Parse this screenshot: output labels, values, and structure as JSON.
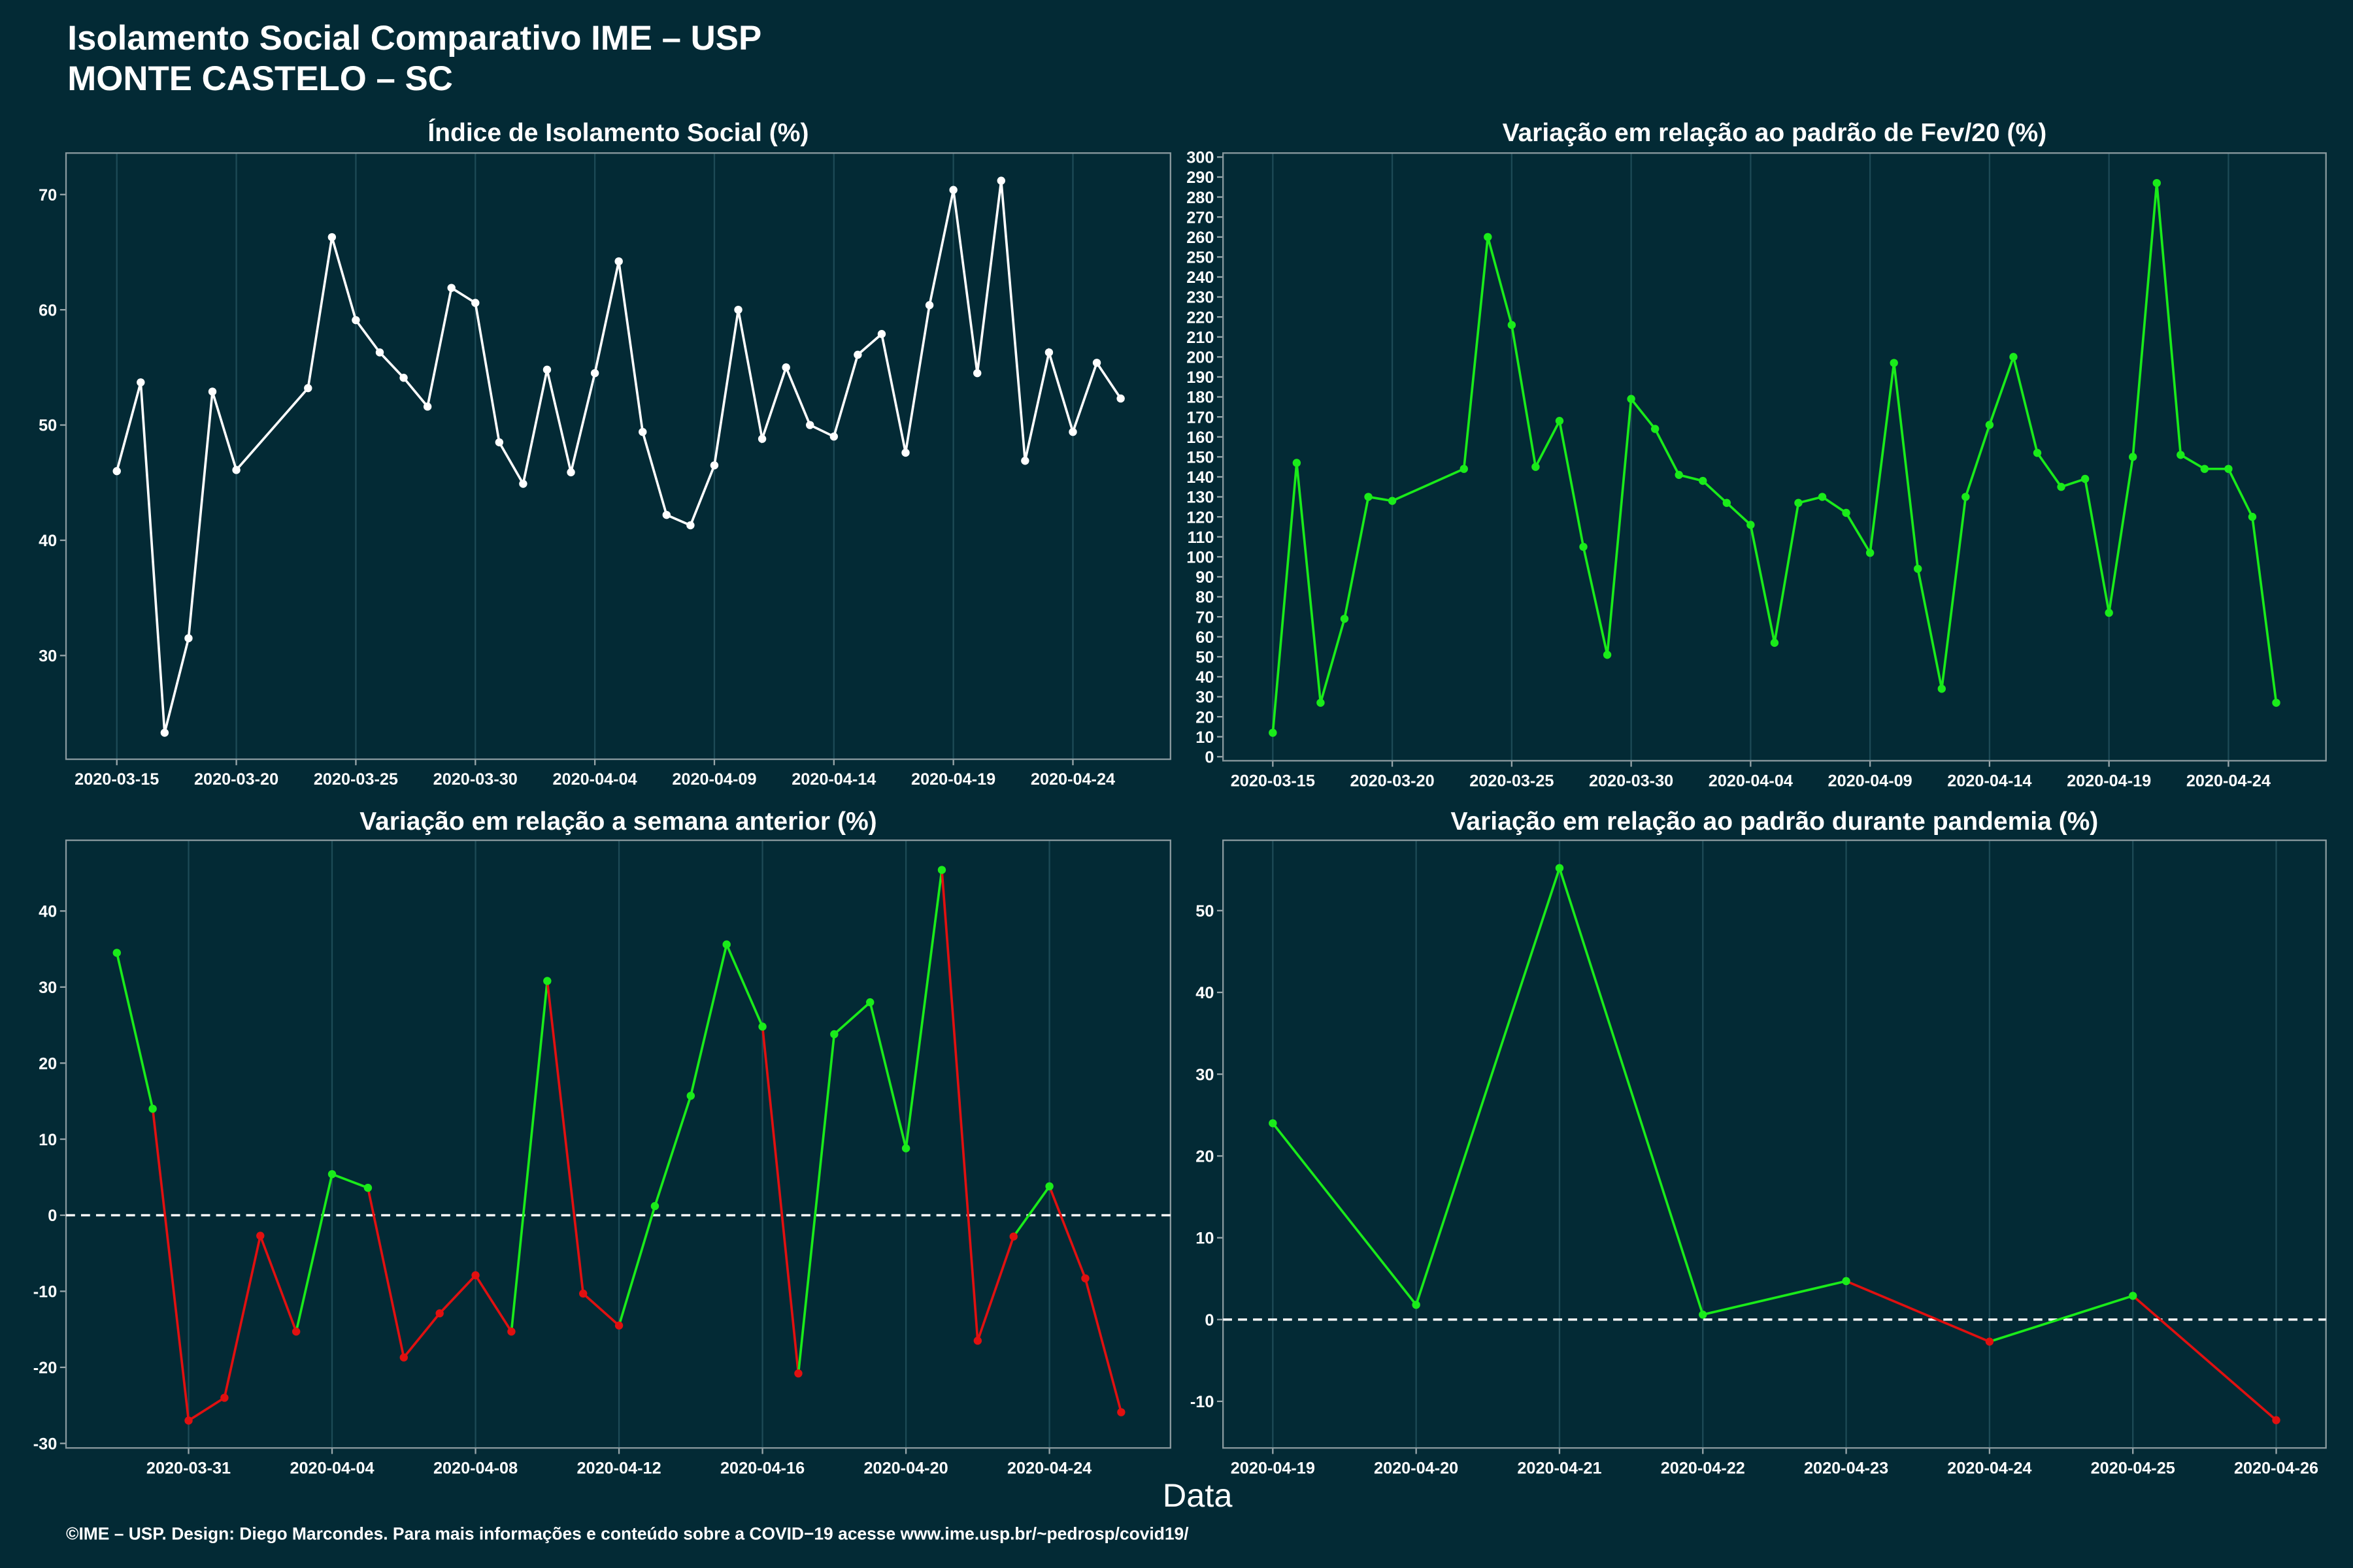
{
  "header": {
    "title": "Isolamento Social Comparativo IME – USP",
    "subtitle": "MONTE CASTELO – SC"
  },
  "x_label": "Data",
  "footer": "©IME – USP. Design: Diego Marcondes. Para mais informações e conteúdo sobre a COVID−19 acesse www.ime.usp.br/~pedrosp/covid19/",
  "chart_data": [
    {
      "type": "line",
      "title": "Índice de Isolamento Social (%)",
      "color": "#ffffff",
      "grid": true,
      "x": [
        "2020-03-15",
        "2020-03-16",
        "2020-03-17",
        "2020-03-18",
        "2020-03-19",
        "2020-03-20",
        "2020-03-23",
        "2020-03-24",
        "2020-03-25",
        "2020-03-26",
        "2020-03-27",
        "2020-03-28",
        "2020-03-29",
        "2020-03-30",
        "2020-03-31",
        "2020-04-01",
        "2020-04-02",
        "2020-04-03",
        "2020-04-04",
        "2020-04-05",
        "2020-04-06",
        "2020-04-07",
        "2020-04-08",
        "2020-04-09",
        "2020-04-10",
        "2020-04-11",
        "2020-04-12",
        "2020-04-13",
        "2020-04-14",
        "2020-04-15",
        "2020-04-16",
        "2020-04-17",
        "2020-04-18",
        "2020-04-19",
        "2020-04-20",
        "2020-04-21",
        "2020-04-22",
        "2020-04-23",
        "2020-04-24",
        "2020-04-25",
        "2020-04-26"
      ],
      "values": [
        46.0,
        53.7,
        23.3,
        31.5,
        52.9,
        46.1,
        53.2,
        66.3,
        59.1,
        56.3,
        54.1,
        51.6,
        61.9,
        60.6,
        48.5,
        44.9,
        54.8,
        45.9,
        54.5,
        64.2,
        49.4,
        42.2,
        41.3,
        46.5,
        60.0,
        48.8,
        55.0,
        50.0,
        49.0,
        56.1,
        57.9,
        47.6,
        60.4,
        70.4,
        54.5,
        71.2,
        46.9,
        56.3,
        49.4,
        55.4,
        52.3
      ],
      "xlim": [
        "2020-03-12T21:00",
        "2020-04-28T02:00"
      ],
      "xticks": [
        "2020-03-15",
        "2020-03-20",
        "2020-03-25",
        "2020-03-30",
        "2020-04-04",
        "2020-04-09",
        "2020-04-14",
        "2020-04-19",
        "2020-04-24"
      ],
      "ylim": [
        21,
        73.6
      ],
      "yticks": [
        30,
        40,
        50,
        60,
        70
      ]
    },
    {
      "type": "line",
      "title": "Variação em relação ao padrão de Fev/20 (%)",
      "color": "#1aeb1a",
      "grid": true,
      "x": [
        "2020-03-15",
        "2020-03-16",
        "2020-03-17",
        "2020-03-18",
        "2020-03-19",
        "2020-03-20",
        "2020-03-23",
        "2020-03-24",
        "2020-03-25",
        "2020-03-26",
        "2020-03-27",
        "2020-03-28",
        "2020-03-29",
        "2020-03-30",
        "2020-03-31",
        "2020-04-01",
        "2020-04-02",
        "2020-04-03",
        "2020-04-04",
        "2020-04-05",
        "2020-04-06",
        "2020-04-07",
        "2020-04-08",
        "2020-04-09",
        "2020-04-10",
        "2020-04-11",
        "2020-04-12",
        "2020-04-13",
        "2020-04-14",
        "2020-04-15",
        "2020-04-16",
        "2020-04-17",
        "2020-04-18",
        "2020-04-19",
        "2020-04-20",
        "2020-04-21",
        "2020-04-22",
        "2020-04-23",
        "2020-04-24",
        "2020-04-25",
        "2020-04-26"
      ],
      "values": [
        12,
        147,
        27,
        69,
        130,
        128,
        144,
        260,
        216,
        145,
        168,
        105,
        51,
        179,
        164,
        141,
        138,
        127,
        116,
        57,
        127,
        130,
        122,
        102,
        197,
        94,
        34,
        130,
        166,
        200,
        152,
        135,
        139,
        72,
        150,
        287,
        151,
        144,
        144,
        120,
        27
      ],
      "xlim": [
        "2020-03-12T22:00",
        "2020-04-28T02:00"
      ],
      "xticks": [
        "2020-03-15",
        "2020-03-20",
        "2020-03-25",
        "2020-03-30",
        "2020-04-04",
        "2020-04-09",
        "2020-04-14",
        "2020-04-19",
        "2020-04-24"
      ],
      "ylim": [
        -2,
        302
      ],
      "yticks": [
        0,
        10,
        20,
        30,
        40,
        50,
        60,
        70,
        80,
        90,
        100,
        110,
        120,
        130,
        140,
        150,
        160,
        170,
        180,
        190,
        200,
        210,
        220,
        230,
        240,
        250,
        260,
        270,
        280,
        290,
        300
      ]
    },
    {
      "type": "signed-line",
      "title": "Variação em relação a semana anterior (%)",
      "color_positive": "#1aeb1a",
      "color_negative": "#e01010",
      "reference_line": 0,
      "grid": true,
      "x": [
        "2020-03-29",
        "2020-03-30",
        "2020-03-31",
        "2020-04-01",
        "2020-04-02",
        "2020-04-03",
        "2020-04-04",
        "2020-04-05",
        "2020-04-06",
        "2020-04-07",
        "2020-04-08",
        "2020-04-09",
        "2020-04-10",
        "2020-04-11",
        "2020-04-12",
        "2020-04-13",
        "2020-04-14",
        "2020-04-15",
        "2020-04-16",
        "2020-04-17",
        "2020-04-18",
        "2020-04-19",
        "2020-04-20",
        "2020-04-21",
        "2020-04-22",
        "2020-04-23",
        "2020-04-24",
        "2020-04-25",
        "2020-04-26"
      ],
      "values": [
        34.5,
        14.0,
        -27.0,
        -24.0,
        -2.7,
        -15.3,
        5.4,
        3.6,
        -18.7,
        -12.9,
        -7.9,
        -15.3,
        30.8,
        -10.3,
        -14.5,
        1.2,
        15.7,
        35.6,
        24.8,
        -20.8,
        23.8,
        28.0,
        8.8,
        45.4,
        -16.5,
        -2.8,
        3.8,
        -8.3,
        -25.9
      ],
      "xlim": [
        "2020-03-27T14:00",
        "2020-04-27T09:00"
      ],
      "xticks": [
        "2020-03-31",
        "2020-04-04",
        "2020-04-08",
        "2020-04-12",
        "2020-04-16",
        "2020-04-20",
        "2020-04-24"
      ],
      "ylim": [
        -30.6,
        49.3
      ],
      "yticks": [
        -30,
        -20,
        -10,
        0,
        10,
        20,
        30,
        40
      ]
    },
    {
      "type": "signed-line",
      "title": "Variação em relação ao padrão durante pandemia (%)",
      "color_positive": "#1aeb1a",
      "color_negative": "#e01010",
      "reference_line": 0,
      "grid": true,
      "x": [
        "2020-04-19",
        "2020-04-20",
        "2020-04-21",
        "2020-04-22",
        "2020-04-23",
        "2020-04-24",
        "2020-04-25",
        "2020-04-26"
      ],
      "values": [
        24.0,
        1.8,
        55.2,
        0.6,
        4.7,
        -2.7,
        2.9,
        -12.3
      ],
      "xlim": [
        "2020-04-18T15:40",
        "2020-04-26T08:20"
      ],
      "xticks": [
        "2020-04-19",
        "2020-04-20",
        "2020-04-21",
        "2020-04-22",
        "2020-04-23",
        "2020-04-24",
        "2020-04-25",
        "2020-04-26"
      ],
      "ylim": [
        -15.7,
        58.6
      ],
      "yticks": [
        -10,
        0,
        10,
        20,
        30,
        40,
        50
      ]
    }
  ]
}
